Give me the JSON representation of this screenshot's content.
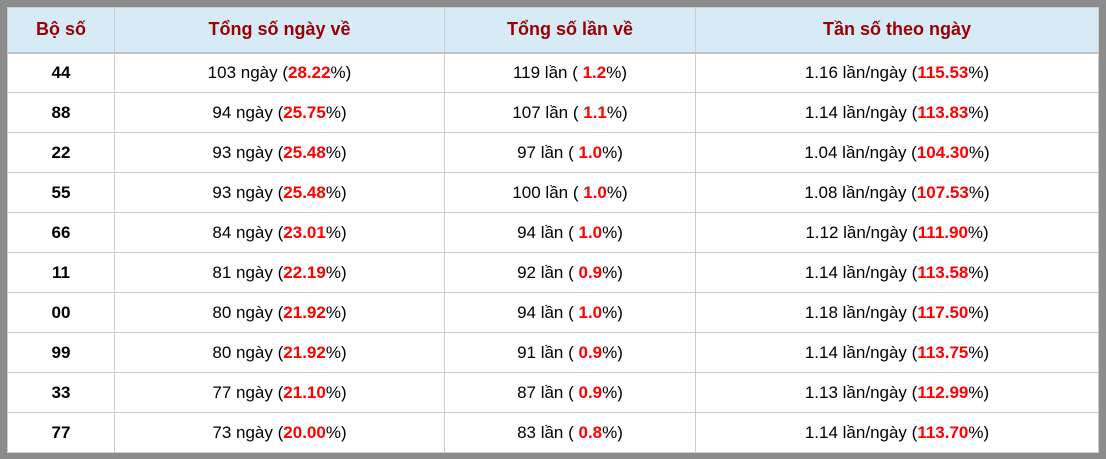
{
  "colors": {
    "frame_gray": "#8c8c8c",
    "grid_line": "#cccccc",
    "header_bg": "#d7ebf6",
    "header_text": "#990000",
    "body_text": "#000000",
    "highlight_red": "#ff0000"
  },
  "table": {
    "columns": [
      {
        "label": "Bộ số"
      },
      {
        "label": "Tổng số ngày về"
      },
      {
        "label": "Tổng số lần về"
      },
      {
        "label": "Tần số theo ngày"
      }
    ],
    "rows": [
      {
        "set": "44",
        "days": {
          "pre": "103 ngày (",
          "pct": "28.22",
          "post": "%)"
        },
        "times": {
          "pre": "119 lần ( ",
          "pct": "1.2",
          "post": "%)"
        },
        "freq": {
          "pre": "1.16 lần/ngày (",
          "pct": "115.53",
          "post": "%)"
        }
      },
      {
        "set": "88",
        "days": {
          "pre": "94 ngày (",
          "pct": "25.75",
          "post": "%)"
        },
        "times": {
          "pre": "107 lần ( ",
          "pct": "1.1",
          "post": "%)"
        },
        "freq": {
          "pre": "1.14 lần/ngày (",
          "pct": "113.83",
          "post": "%)"
        }
      },
      {
        "set": "22",
        "days": {
          "pre": "93 ngày (",
          "pct": "25.48",
          "post": "%)"
        },
        "times": {
          "pre": "97 lần ( ",
          "pct": "1.0",
          "post": "%)"
        },
        "freq": {
          "pre": "1.04 lần/ngày (",
          "pct": "104.30",
          "post": "%)"
        }
      },
      {
        "set": "55",
        "days": {
          "pre": "93 ngày (",
          "pct": "25.48",
          "post": "%)"
        },
        "times": {
          "pre": "100 lần ( ",
          "pct": "1.0",
          "post": "%)"
        },
        "freq": {
          "pre": "1.08 lần/ngày (",
          "pct": "107.53",
          "post": "%)"
        }
      },
      {
        "set": "66",
        "days": {
          "pre": "84 ngày (",
          "pct": "23.01",
          "post": "%)"
        },
        "times": {
          "pre": "94 lần ( ",
          "pct": "1.0",
          "post": "%)"
        },
        "freq": {
          "pre": "1.12 lần/ngày (",
          "pct": "111.90",
          "post": "%)"
        }
      },
      {
        "set": "11",
        "days": {
          "pre": "81 ngày (",
          "pct": "22.19",
          "post": "%)"
        },
        "times": {
          "pre": "92 lần ( ",
          "pct": "0.9",
          "post": "%)"
        },
        "freq": {
          "pre": "1.14 lần/ngày (",
          "pct": "113.58",
          "post": "%)"
        }
      },
      {
        "set": "00",
        "days": {
          "pre": "80 ngày (",
          "pct": "21.92",
          "post": "%)"
        },
        "times": {
          "pre": "94 lần ( ",
          "pct": "1.0",
          "post": "%)"
        },
        "freq": {
          "pre": "1.18 lần/ngày (",
          "pct": "117.50",
          "post": "%)"
        }
      },
      {
        "set": "99",
        "days": {
          "pre": "80 ngày (",
          "pct": "21.92",
          "post": "%)"
        },
        "times": {
          "pre": "91 lần ( ",
          "pct": "0.9",
          "post": "%)"
        },
        "freq": {
          "pre": "1.14 lần/ngày (",
          "pct": "113.75",
          "post": "%)"
        }
      },
      {
        "set": "33",
        "days": {
          "pre": "77 ngày (",
          "pct": "21.10",
          "post": "%)"
        },
        "times": {
          "pre": "87 lần ( ",
          "pct": "0.9",
          "post": "%)"
        },
        "freq": {
          "pre": "1.13 lần/ngày (",
          "pct": "112.99",
          "post": "%)"
        }
      },
      {
        "set": "77",
        "days": {
          "pre": "73 ngày (",
          "pct": "20.00",
          "post": "%)"
        },
        "times": {
          "pre": "83 lần ( ",
          "pct": "0.8",
          "post": "%)"
        },
        "freq": {
          "pre": "1.14 lần/ngày (",
          "pct": "113.70",
          "post": "%)"
        }
      }
    ]
  }
}
